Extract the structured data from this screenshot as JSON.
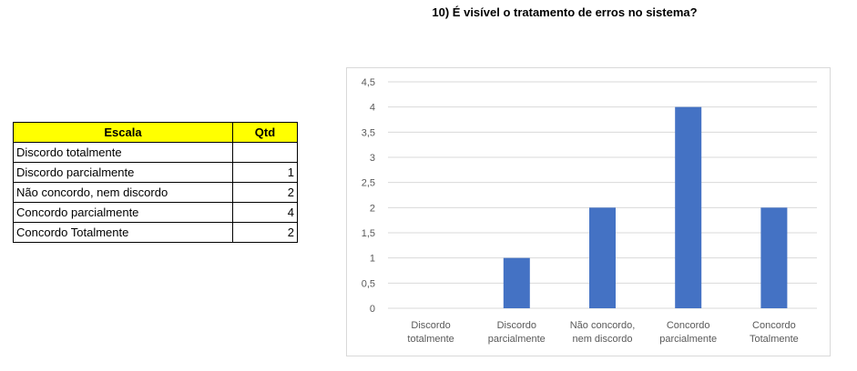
{
  "table": {
    "headers": [
      "Escala",
      "Qtd"
    ],
    "rows": [
      {
        "label": "Discordo totalmente",
        "value": ""
      },
      {
        "label": "Discordo parcialmente",
        "value": "1"
      },
      {
        "label": "Não concordo, nem discordo",
        "value": "2"
      },
      {
        "label": "Concordo parcialmente",
        "value": "4"
      },
      {
        "label": "Concordo Totalmente",
        "value": "2"
      }
    ]
  },
  "chart_data": {
    "type": "bar",
    "title": "10) É visível o tratamento de erros no sistema?",
    "categories": [
      [
        "Discordo",
        "totalmente"
      ],
      [
        "Discordo",
        "parcialmente"
      ],
      [
        "Não concordo,",
        "nem discordo"
      ],
      [
        "Concordo",
        "parcialmente"
      ],
      [
        "Concordo",
        "Totalmente"
      ]
    ],
    "values": [
      0,
      1,
      2,
      4,
      2
    ],
    "ylim": [
      0,
      4.5
    ],
    "yticks": [
      "0",
      "0,5",
      "1",
      "1,5",
      "2",
      "2,5",
      "3",
      "3,5",
      "4",
      "4,5"
    ],
    "grid": true,
    "legend": "none",
    "bar_color": "#4472c4",
    "grid_color": "#d9d9d9"
  }
}
